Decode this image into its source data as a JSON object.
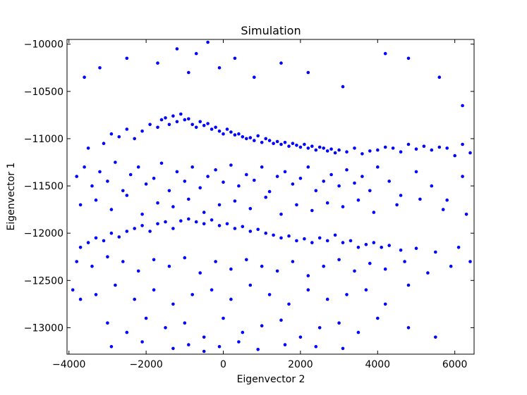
{
  "chart_data": {
    "type": "scatter",
    "title": "Simulation",
    "xlabel": "Eigenvector 2",
    "ylabel": "Eigenvector 1",
    "xlim": [
      -4050,
      6500
    ],
    "ylim": [
      -13280,
      -9950
    ],
    "xticks": [
      -4000,
      -2000,
      0,
      2000,
      4000,
      6000
    ],
    "yticks": [
      -10000,
      -10500,
      -11000,
      -11500,
      -12000,
      -12500,
      -13000
    ],
    "xtick_labels": [
      "−4000",
      "−2000",
      "0",
      "2000",
      "4000",
      "6000"
    ],
    "ytick_labels": [
      "−10000",
      "−10500",
      "−11000",
      "−11500",
      "−12000",
      "−12500",
      "−13000"
    ],
    "grid": false,
    "marker_color": "#0000ff",
    "series": [
      {
        "name": "",
        "x": [
          -3600,
          -3200,
          -2500,
          -1700,
          -1200,
          -900,
          -700,
          -400,
          -100,
          300,
          800,
          1500,
          2200,
          3100,
          4200,
          4800,
          5600,
          6200,
          -3500,
          -3100,
          -2900,
          -2700,
          -2500,
          -2300,
          -2100,
          -1900,
          -1700,
          -1600,
          -1500,
          -1400,
          -1300,
          -1200,
          -1100,
          -1000,
          -900,
          -800,
          -700,
          -600,
          -500,
          -400,
          -300,
          -200,
          -100,
          0,
          100,
          200,
          300,
          400,
          500,
          600,
          700,
          800,
          900,
          1000,
          1100,
          1200,
          1300,
          1400,
          1500,
          1600,
          1700,
          1800,
          1900,
          2000,
          2100,
          2200,
          2300,
          2400,
          2500,
          2600,
          2700,
          2800,
          2900,
          3000,
          3200,
          3400,
          3600,
          3800,
          4000,
          4200,
          4400,
          4600,
          4800,
          5000,
          5200,
          5400,
          5600,
          5800,
          6000,
          6200,
          6400,
          -3800,
          -3600,
          -3400,
          -3200,
          -3000,
          -2800,
          -2600,
          -2400,
          -2200,
          -2000,
          -1800,
          -1600,
          -1400,
          -1200,
          -1000,
          -800,
          -600,
          -400,
          -200,
          0,
          200,
          400,
          600,
          800,
          1000,
          1200,
          1400,
          1600,
          1800,
          2000,
          2200,
          2400,
          2600,
          2800,
          3000,
          3200,
          3400,
          3600,
          3800,
          4000,
          4300,
          4600,
          5000,
          5400,
          5800,
          6200,
          -3700,
          -3300,
          -2900,
          -2500,
          -2100,
          -1700,
          -1300,
          -900,
          -500,
          -100,
          300,
          700,
          1100,
          1500,
          1900,
          2300,
          2700,
          3100,
          3500,
          3900,
          4500,
          5100,
          5700,
          6300,
          -3700,
          -3500,
          -3300,
          -3100,
          -2900,
          -2700,
          -2500,
          -2300,
          -2100,
          -1900,
          -1700,
          -1500,
          -1300,
          -1100,
          -900,
          -700,
          -500,
          -300,
          -100,
          100,
          300,
          500,
          700,
          900,
          1100,
          1300,
          1500,
          1700,
          1900,
          2100,
          2300,
          2500,
          2700,
          2900,
          3100,
          3300,
          3500,
          3700,
          3900,
          4100,
          4300,
          4600,
          5000,
          5500,
          6100,
          -3800,
          -3400,
          -3000,
          -2600,
          -2200,
          -1800,
          -1400,
          -1000,
          -600,
          -200,
          200,
          600,
          1000,
          1400,
          1800,
          2200,
          2600,
          3000,
          3400,
          3800,
          4200,
          4700,
          5300,
          5900,
          6400,
          -3900,
          -3700,
          -3300,
          -2800,
          -2300,
          -1800,
          -1300,
          -800,
          -300,
          200,
          700,
          1200,
          1700,
          2200,
          2700,
          3200,
          3700,
          4200,
          4800,
          -3000,
          -2500,
          -2000,
          -1500,
          -1000,
          -500,
          0,
          500,
          1000,
          1500,
          2000,
          2500,
          3000,
          3500,
          4000,
          4800,
          5500,
          -2900,
          -2100,
          -1300,
          -900,
          -500,
          -100,
          400,
          900,
          1600,
          2400,
          3100
        ],
        "y": [
          -10350,
          -10250,
          -10150,
          -10200,
          -10050,
          -10300,
          -10100,
          -9980,
          -10250,
          -10150,
          -10350,
          -10200,
          -10300,
          -10450,
          -10100,
          -10150,
          -10350,
          -10650,
          -11100,
          -11050,
          -10950,
          -10980,
          -10900,
          -11000,
          -10920,
          -10850,
          -10880,
          -10800,
          -10780,
          -10850,
          -10760,
          -10820,
          -10740,
          -10800,
          -10790,
          -10850,
          -10880,
          -10820,
          -10860,
          -10840,
          -10900,
          -10880,
          -10920,
          -10950,
          -10900,
          -10930,
          -10960,
          -10950,
          -10980,
          -11000,
          -10990,
          -11020,
          -10970,
          -11040,
          -11000,
          -11020,
          -11050,
          -11030,
          -11060,
          -11040,
          -11080,
          -11050,
          -11070,
          -11090,
          -11060,
          -11100,
          -11080,
          -11120,
          -11090,
          -11100,
          -11130,
          -11110,
          -11150,
          -11120,
          -11140,
          -11100,
          -11160,
          -11130,
          -11120,
          -11090,
          -11100,
          -11140,
          -11060,
          -11110,
          -11080,
          -11120,
          -11090,
          -11100,
          -11180,
          -11060,
          -11150,
          -11400,
          -11300,
          -11500,
          -11350,
          -11450,
          -11250,
          -11550,
          -11380,
          -11300,
          -11480,
          -11420,
          -11260,
          -11550,
          -11350,
          -11450,
          -11300,
          -11520,
          -11400,
          -11330,
          -11460,
          -11280,
          -11500,
          -11380,
          -11440,
          -11300,
          -11560,
          -11400,
          -11350,
          -11480,
          -11420,
          -11300,
          -11550,
          -11450,
          -11380,
          -11500,
          -11330,
          -11470,
          -11400,
          -11550,
          -11300,
          -11450,
          -11600,
          -11350,
          -11500,
          -11650,
          -11400,
          -11700,
          -11650,
          -11750,
          -11600,
          -11800,
          -11680,
          -11720,
          -11640,
          -11780,
          -11700,
          -11660,
          -11740,
          -11620,
          -11800,
          -11700,
          -11760,
          -11680,
          -11720,
          -11650,
          -11780,
          -11700,
          -11640,
          -11750,
          -11800,
          -12150,
          -12100,
          -12050,
          -12080,
          -12000,
          -12040,
          -11980,
          -11950,
          -11920,
          -11980,
          -11900,
          -11880,
          -11950,
          -11870,
          -11850,
          -11880,
          -11900,
          -11860,
          -11920,
          -11900,
          -11950,
          -11930,
          -11980,
          -11960,
          -12000,
          -12020,
          -12050,
          -12030,
          -12080,
          -12060,
          -12100,
          -12050,
          -12080,
          -12020,
          -12100,
          -12080,
          -12150,
          -12120,
          -12100,
          -12150,
          -12130,
          -12180,
          -12160,
          -12200,
          -12150,
          -12300,
          -12350,
          -12250,
          -12300,
          -12400,
          -12280,
          -12350,
          -12260,
          -12420,
          -12300,
          -12380,
          -12280,
          -12350,
          -12400,
          -12300,
          -12450,
          -12350,
          -12280,
          -12400,
          -12320,
          -12380,
          -12300,
          -12420,
          -12350,
          -12300,
          -12600,
          -12700,
          -12650,
          -12550,
          -12700,
          -12600,
          -12750,
          -12650,
          -12600,
          -12700,
          -12550,
          -12650,
          -12750,
          -12600,
          -12700,
          -12650,
          -12600,
          -12750,
          -12550,
          -12950,
          -13050,
          -12900,
          -13000,
          -12950,
          -13100,
          -12900,
          -13050,
          -12980,
          -12920,
          -13100,
          -13000,
          -12950,
          -13050,
          -12900,
          -13000,
          -13100,
          -13200,
          -13150,
          -13220,
          -13180,
          -13250,
          -13200,
          -13150,
          -13230,
          -13180,
          -13200,
          -13220
        ]
      }
    ]
  }
}
